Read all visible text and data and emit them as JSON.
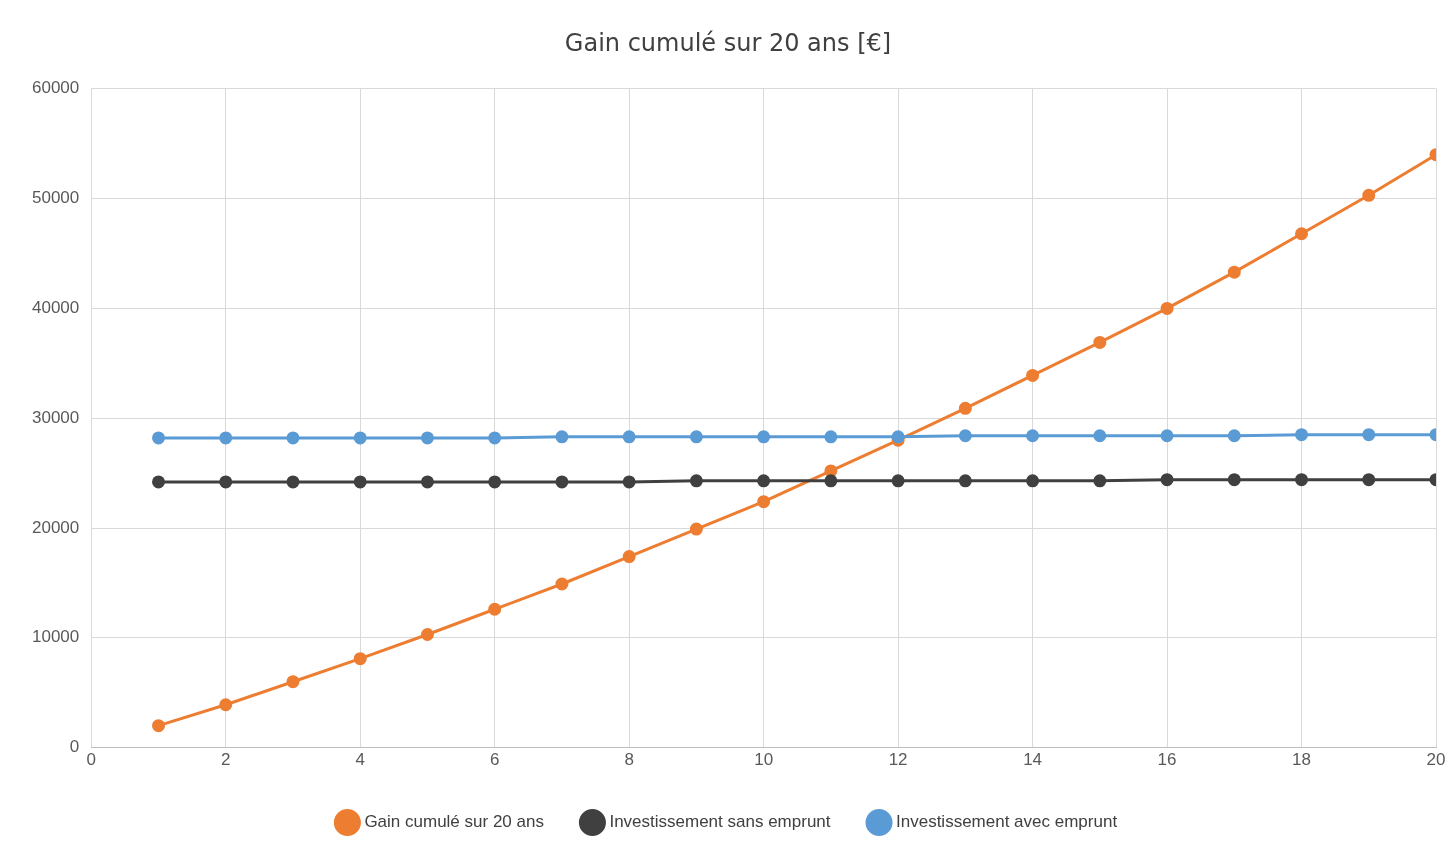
{
  "chart_data": {
    "type": "line",
    "title": "Gain cumulé sur 20 ans [€]",
    "x": [
      1,
      2,
      3,
      4,
      5,
      6,
      7,
      8,
      9,
      10,
      11,
      12,
      13,
      14,
      15,
      16,
      17,
      18,
      19,
      20
    ],
    "series": [
      {
        "name": "Gain cumulé sur 20 ans",
        "color": "#ed7d31",
        "values": [
          2000,
          3900,
          6000,
          8100,
          10300,
          12600,
          14900,
          17400,
          19900,
          22400,
          25200,
          28000,
          30900,
          33900,
          36900,
          40000,
          43300,
          46800,
          50300,
          54000
        ]
      },
      {
        "name": "Investissement sans emprunt",
        "color": "#404040",
        "values": [
          24200,
          24200,
          24200,
          24200,
          24200,
          24200,
          24200,
          24200,
          24300,
          24300,
          24300,
          24300,
          24300,
          24300,
          24300,
          24400,
          24400,
          24400,
          24400,
          24400
        ]
      },
      {
        "name": "Investissement avec emprunt",
        "color": "#5b9bd5",
        "values": [
          28200,
          28200,
          28200,
          28200,
          28200,
          28200,
          28300,
          28300,
          28300,
          28300,
          28300,
          28300,
          28400,
          28400,
          28400,
          28400,
          28400,
          28500,
          28500,
          28500
        ]
      }
    ],
    "xlim": [
      0,
      20
    ],
    "xticks": [
      0,
      2,
      4,
      6,
      8,
      10,
      12,
      14,
      16,
      18,
      20
    ],
    "ylim": [
      0,
      60000
    ],
    "yticks": [
      0,
      10000,
      20000,
      30000,
      40000,
      50000,
      60000
    ],
    "grid": true,
    "legend": "bottom",
    "marker": "circle",
    "line_style": "solid"
  }
}
